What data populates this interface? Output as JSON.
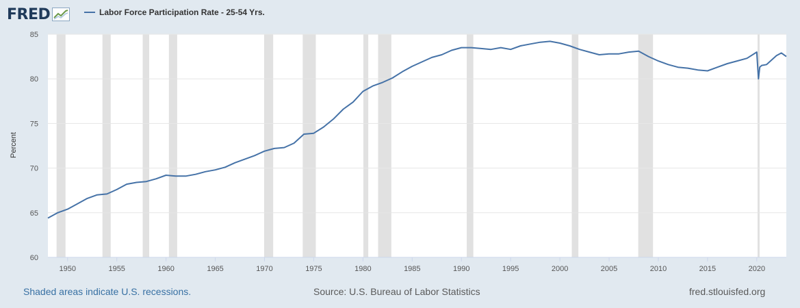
{
  "header": {
    "logo_text": "FRED",
    "logo_icon": "line-chart-icon",
    "legend_label": "Labor Force Participation Rate - 25-54 Yrs."
  },
  "footer": {
    "left": "Shaded areas indicate U.S. recessions.",
    "center": "Source: U.S. Bureau of Labor Statistics",
    "right": "fred.stlouisfed.org"
  },
  "colors": {
    "background": "#e1e9f0",
    "plot_background": "#ffffff",
    "line": "#4572a7",
    "recession": "#e1e1e1",
    "grid": "#e6e6e6",
    "logo": "#1f3a5a"
  },
  "chart_data": {
    "type": "line",
    "title": "",
    "xlabel": "",
    "ylabel": "Percent",
    "xlim": [
      1948.0,
      2023.0
    ],
    "ylim": [
      60,
      85
    ],
    "x_ticks": [
      "1950",
      "1955",
      "1960",
      "1965",
      "1970",
      "1975",
      "1980",
      "1985",
      "1990",
      "1995",
      "2000",
      "2005",
      "2010",
      "2015",
      "2020"
    ],
    "y_ticks": [
      "60",
      "65",
      "70",
      "75",
      "80",
      "85"
    ],
    "grid": "horizontal",
    "legend_placement": "top-left",
    "series": [
      {
        "name": "Labor Force Participation Rate - 25-54 Yrs.",
        "x": [
          1948.0,
          1949.0,
          1950.0,
          1951.0,
          1952.0,
          1953.0,
          1954.0,
          1955.0,
          1956.0,
          1957.0,
          1958.0,
          1959.0,
          1960.0,
          1961.0,
          1962.0,
          1963.0,
          1964.0,
          1965.0,
          1966.0,
          1967.0,
          1968.0,
          1969.0,
          1970.0,
          1971.0,
          1972.0,
          1973.0,
          1974.0,
          1975.0,
          1976.0,
          1977.0,
          1978.0,
          1979.0,
          1980.0,
          1981.0,
          1982.0,
          1983.0,
          1984.0,
          1985.0,
          1986.0,
          1987.0,
          1988.0,
          1989.0,
          1990.0,
          1991.0,
          1992.0,
          1993.0,
          1994.0,
          1995.0,
          1996.0,
          1997.0,
          1998.0,
          1999.0,
          2000.0,
          2001.0,
          2002.0,
          2003.0,
          2004.0,
          2005.0,
          2006.0,
          2007.0,
          2008.0,
          2009.0,
          2010.0,
          2011.0,
          2012.0,
          2013.0,
          2014.0,
          2015.0,
          2016.0,
          2017.0,
          2018.0,
          2019.0,
          2020.0,
          2020.17,
          2020.3,
          2020.5,
          2021.0,
          2022.0,
          2022.5,
          2023.0
        ],
        "y": [
          64.4,
          65.0,
          65.4,
          66.0,
          66.6,
          67.0,
          67.1,
          67.6,
          68.2,
          68.4,
          68.5,
          68.8,
          69.2,
          69.1,
          69.1,
          69.3,
          69.6,
          69.8,
          70.1,
          70.6,
          71.0,
          71.4,
          71.9,
          72.2,
          72.3,
          72.8,
          73.8,
          73.9,
          74.6,
          75.5,
          76.6,
          77.4,
          78.6,
          79.2,
          79.6,
          80.1,
          80.8,
          81.4,
          81.9,
          82.4,
          82.7,
          83.2,
          83.5,
          83.5,
          83.4,
          83.3,
          83.5,
          83.3,
          83.7,
          83.9,
          84.1,
          84.2,
          84.0,
          83.7,
          83.3,
          83.0,
          82.7,
          82.8,
          82.8,
          83.0,
          83.1,
          82.5,
          82.0,
          81.6,
          81.3,
          81.2,
          81.0,
          80.9,
          81.3,
          81.7,
          82.0,
          82.3,
          83.0,
          80.0,
          81.3,
          81.5,
          81.6,
          82.6,
          82.9,
          82.5
        ]
      }
    ],
    "recessions": [
      [
        1948.88,
        1949.79
      ],
      [
        1953.54,
        1954.38
      ],
      [
        1957.63,
        1958.29
      ],
      [
        1960.29,
        1961.13
      ],
      [
        1969.96,
        1970.88
      ],
      [
        1973.88,
        1975.21
      ],
      [
        1980.04,
        1980.54
      ],
      [
        1981.54,
        1982.88
      ],
      [
        1990.54,
        1991.21
      ],
      [
        2001.21,
        2001.88
      ],
      [
        2007.96,
        2009.46
      ],
      [
        2020.08,
        2020.29
      ]
    ]
  }
}
